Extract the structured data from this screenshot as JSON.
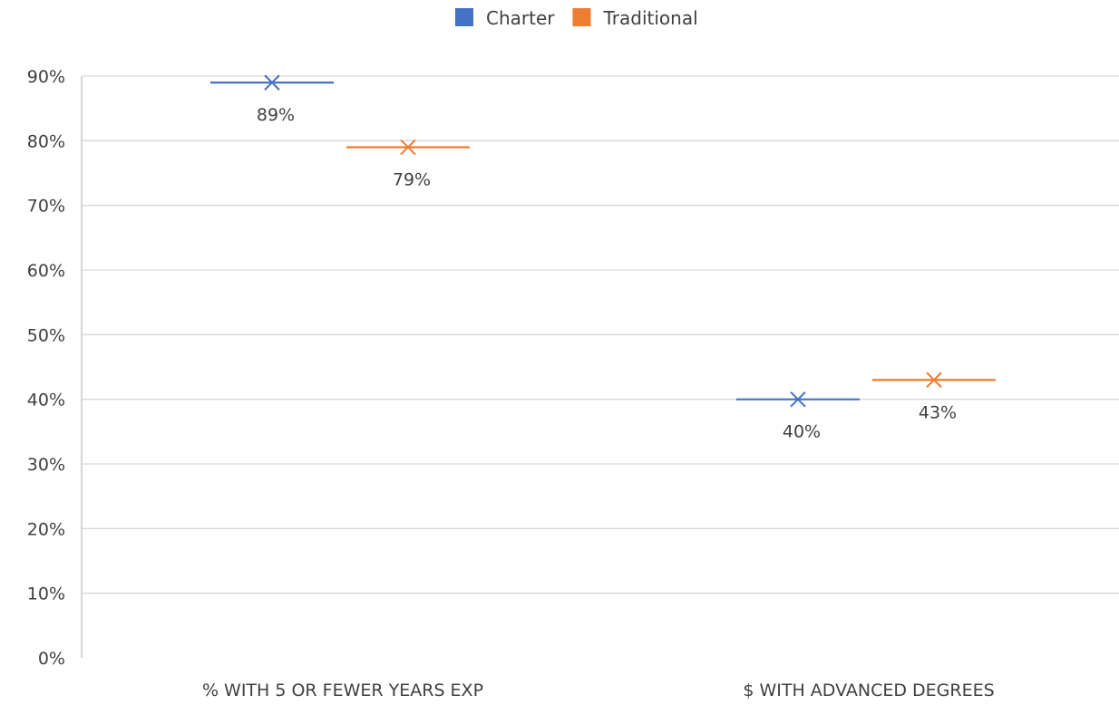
{
  "chart_data": {
    "type": "scatter",
    "title": "",
    "xlabel": "",
    "ylabel": "",
    "categories": [
      "% WITH 5 OR FEWER YEARS EXP",
      "$ WITH ADVANCED DEGREES"
    ],
    "series": [
      {
        "name": "Charter",
        "color": "#4472C4",
        "values": [
          0.89,
          0.4
        ],
        "labels": [
          "89%",
          "40%"
        ]
      },
      {
        "name": "Traditional",
        "color": "#ED7D31",
        "values": [
          0.79,
          0.43
        ],
        "labels": [
          "79%",
          "43%"
        ]
      }
    ],
    "ylim": [
      0,
      0.9
    ],
    "yticks": [
      0,
      0.1,
      0.2,
      0.3,
      0.4,
      0.5,
      0.6,
      0.7,
      0.8,
      0.9
    ],
    "ytick_labels": [
      "0%",
      "10%",
      "20%",
      "30%",
      "40%",
      "50%",
      "60%",
      "70%",
      "80%",
      "90%"
    ],
    "marker": "x-with-horizontal-line",
    "grid": true,
    "gridline_color": "#D9D9D9",
    "legend": "top-center"
  }
}
